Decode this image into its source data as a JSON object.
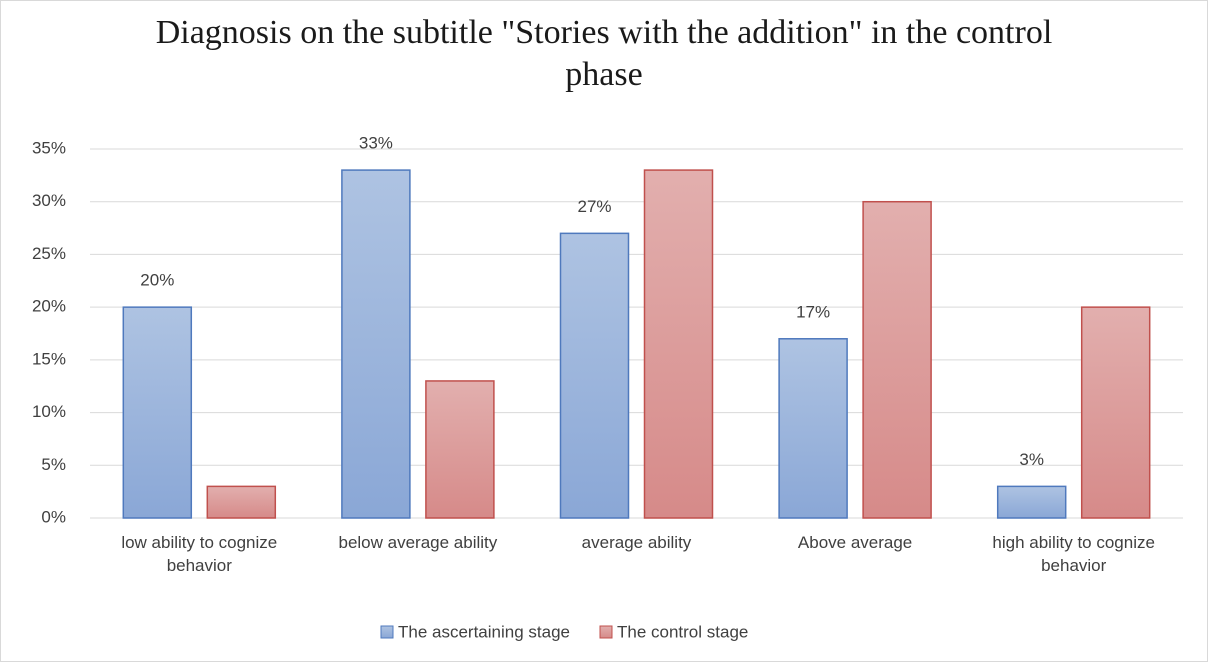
{
  "chart_data": {
    "type": "bar",
    "title": "Diagnosis on the subtitle \"Stories with the addition\" in the control phase",
    "categories": [
      "low ability to cognize behavior",
      "below average ability",
      "average ability",
      "Above average",
      "high ability to cognize behavior"
    ],
    "series": [
      {
        "name": "The ascertaining stage",
        "color": "#8aa7d6",
        "values": [
          20,
          33,
          27,
          17,
          3
        ],
        "value_labels": [
          "20%",
          "33%",
          "27%",
          "17%",
          "3%"
        ]
      },
      {
        "name": "The control stage",
        "color": "#d68a89",
        "values": [
          3,
          13,
          33,
          30,
          20
        ]
      }
    ],
    "ylim": [
      0,
      35
    ],
    "yticks": [
      {
        "value": 0,
        "label": "0%"
      },
      {
        "value": 5,
        "label": "5%"
      },
      {
        "value": 10,
        "label": "10%"
      },
      {
        "value": 15,
        "label": "15%"
      },
      {
        "value": 20,
        "label": "20%"
      },
      {
        "value": 25,
        "label": "25%"
      },
      {
        "value": 30,
        "label": "30%"
      },
      {
        "value": 35,
        "label": "35%"
      }
    ],
    "grid": true,
    "legend": "bottom"
  }
}
